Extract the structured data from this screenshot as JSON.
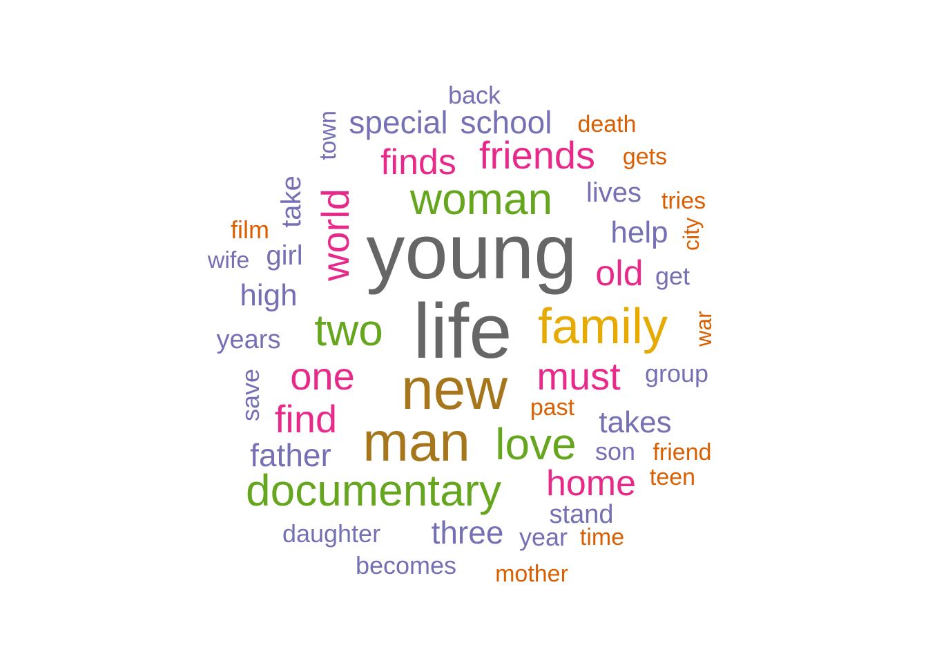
{
  "colors": {
    "gray": "#666666",
    "brown": "#A6761D",
    "gold": "#E6AB02",
    "green": "#66A61E",
    "pink": "#E7298A",
    "purple": "#7570B3",
    "orange": "#D95F02"
  },
  "chart_data": {
    "type": "wordcloud",
    "words": [
      {
        "text": "young",
        "freq": 10,
        "color": "gray"
      },
      {
        "text": "life",
        "freq": 10,
        "color": "gray"
      },
      {
        "text": "new",
        "freq": 8.5,
        "color": "brown"
      },
      {
        "text": "man",
        "freq": 8.3,
        "color": "brown"
      },
      {
        "text": "family",
        "freq": 6.7,
        "color": "gold"
      },
      {
        "text": "woman",
        "freq": 6,
        "color": "green"
      },
      {
        "text": "two",
        "freq": 6,
        "color": "green"
      },
      {
        "text": "love",
        "freq": 6,
        "color": "green"
      },
      {
        "text": "documentary",
        "freq": 6,
        "color": "green"
      },
      {
        "text": "world",
        "freq": 5.2,
        "color": "pink"
      },
      {
        "text": "friends",
        "freq": 5,
        "color": "pink"
      },
      {
        "text": "one",
        "freq": 5,
        "color": "pink"
      },
      {
        "text": "must",
        "freq": 5,
        "color": "pink"
      },
      {
        "text": "find",
        "freq": 5,
        "color": "pink"
      },
      {
        "text": "home",
        "freq": 4.6,
        "color": "pink"
      },
      {
        "text": "finds",
        "freq": 4.4,
        "color": "pink"
      },
      {
        "text": "old",
        "freq": 4.4,
        "color": "pink"
      },
      {
        "text": "special",
        "freq": 4.2,
        "color": "purple"
      },
      {
        "text": "school",
        "freq": 4.2,
        "color": "purple"
      },
      {
        "text": "father",
        "freq": 4.2,
        "color": "purple"
      },
      {
        "text": "three",
        "freq": 4.2,
        "color": "purple"
      },
      {
        "text": "takes",
        "freq": 4,
        "color": "purple"
      },
      {
        "text": "help",
        "freq": 4,
        "color": "purple"
      },
      {
        "text": "high",
        "freq": 4,
        "color": "purple"
      },
      {
        "text": "girl",
        "freq": 3.8,
        "color": "purple"
      },
      {
        "text": "take",
        "freq": 3.7,
        "color": "purple"
      },
      {
        "text": "lives",
        "freq": 3.7,
        "color": "purple"
      },
      {
        "text": "stand",
        "freq": 3.5,
        "color": "purple"
      },
      {
        "text": "years",
        "freq": 3.5,
        "color": "purple"
      },
      {
        "text": "back",
        "freq": 3.4,
        "color": "purple"
      },
      {
        "text": "group",
        "freq": 3.4,
        "color": "purple"
      },
      {
        "text": "son",
        "freq": 3.4,
        "color": "purple"
      },
      {
        "text": "becomes",
        "freq": 3.4,
        "color": "purple"
      },
      {
        "text": "daughter",
        "freq": 3.4,
        "color": "purple"
      },
      {
        "text": "year",
        "freq": 3.3,
        "color": "purple"
      },
      {
        "text": "get",
        "freq": 3.3,
        "color": "purple"
      },
      {
        "text": "save",
        "freq": 3.3,
        "color": "purple"
      },
      {
        "text": "town",
        "freq": 3.2,
        "color": "purple"
      },
      {
        "text": "wife",
        "freq": 3.2,
        "color": "purple"
      },
      {
        "text": "film",
        "freq": 3.3,
        "color": "orange"
      },
      {
        "text": "friend",
        "freq": 3.2,
        "color": "orange"
      },
      {
        "text": "teen",
        "freq": 3.2,
        "color": "orange"
      },
      {
        "text": "mother",
        "freq": 3.2,
        "color": "orange"
      },
      {
        "text": "time",
        "freq": 3.2,
        "color": "orange"
      },
      {
        "text": "death",
        "freq": 3.1,
        "color": "orange"
      },
      {
        "text": "gets",
        "freq": 3.1,
        "color": "orange"
      },
      {
        "text": "tries",
        "freq": 3.1,
        "color": "orange"
      },
      {
        "text": "past",
        "freq": 3.1,
        "color": "orange"
      },
      {
        "text": "city",
        "freq": 3,
        "color": "orange"
      },
      {
        "text": "war",
        "freq": 3,
        "color": "orange"
      }
    ]
  }
}
